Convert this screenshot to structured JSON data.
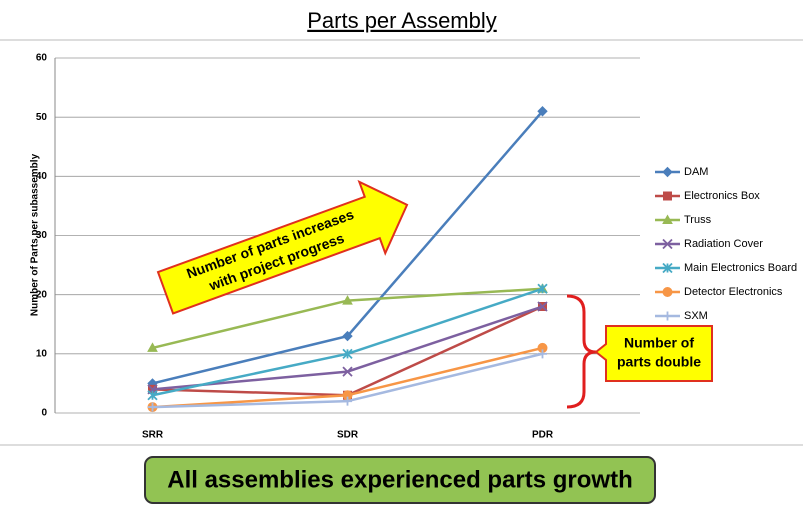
{
  "chart_data": {
    "type": "line",
    "title": "Parts per Assembly",
    "y_label": "Number of Parts per subassembly",
    "categories": [
      "SRR",
      "SDR",
      "PDR"
    ],
    "series": [
      {
        "name": "DAM",
        "color": "#4a7ebb",
        "marker": "diamond",
        "values": [
          5,
          13,
          51
        ]
      },
      {
        "name": "Electronics Box",
        "color": "#be4b48",
        "marker": "square",
        "values": [
          4,
          3,
          18
        ]
      },
      {
        "name": "Truss",
        "color": "#98b954",
        "marker": "triangle",
        "values": [
          11,
          19,
          21
        ]
      },
      {
        "name": "Radiation Cover",
        "color": "#7d60a0",
        "marker": "x",
        "values": [
          4,
          7,
          18
        ]
      },
      {
        "name": "Main Electronics Board",
        "color": "#46aac5",
        "marker": "star",
        "values": [
          3,
          10,
          21
        ]
      },
      {
        "name": "Detector Electronics",
        "color": "#f79646",
        "marker": "circle",
        "values": [
          1,
          3,
          11
        ]
      },
      {
        "name": "SXM",
        "color": "#a5b9e0",
        "marker": "plus",
        "values": [
          1,
          2,
          10
        ]
      }
    ],
    "ylim": [
      0,
      60
    ],
    "yticks": [
      0,
      10,
      20,
      30,
      40,
      50,
      60
    ],
    "grid": true,
    "legend": "right",
    "annotations": [
      {
        "lines": [
          "Number of parts increases",
          "with project progress"
        ]
      },
      {
        "lines": [
          "Number of",
          "parts double"
        ]
      }
    ],
    "footer": "All assemblies experienced parts growth"
  }
}
